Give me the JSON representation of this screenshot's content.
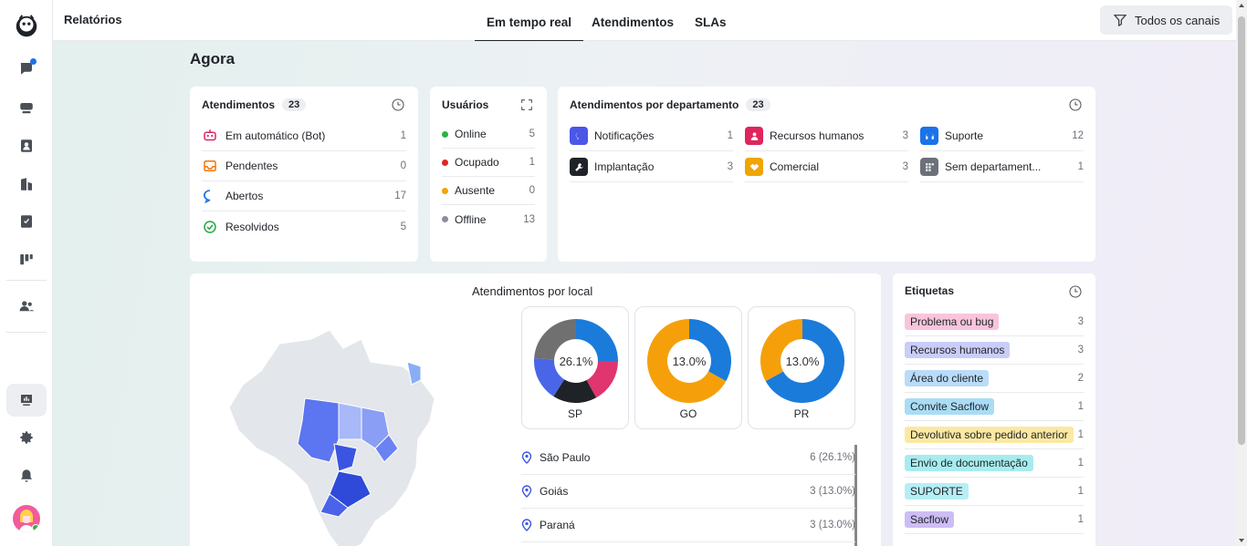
{
  "header": {
    "title": "Relatórios",
    "tabs": [
      "Em tempo real",
      "Atendimentos",
      "SLAs"
    ],
    "filter_label": "Todos os canais"
  },
  "section_title": "Agora",
  "atendimentos": {
    "title": "Atendimentos",
    "count": "23",
    "rows": [
      {
        "label": "Em automático (Bot)",
        "value": "1",
        "icon": "bot-icon",
        "color": "#e0245e"
      },
      {
        "label": "Pendentes",
        "value": "0",
        "icon": "inbox-icon",
        "color": "#f5740a"
      },
      {
        "label": "Abertos",
        "value": "17",
        "icon": "chat-bubble-icon",
        "color": "#1a73e8"
      },
      {
        "label": "Resolvidos",
        "value": "5",
        "icon": "check-circle-icon",
        "color": "#22a845"
      }
    ]
  },
  "usuarios": {
    "title": "Usuários",
    "rows": [
      {
        "label": "Online",
        "value": "5",
        "color": "#2bb34b"
      },
      {
        "label": "Ocupado",
        "value": "1",
        "color": "#e02424"
      },
      {
        "label": "Ausente",
        "value": "0",
        "color": "#f0a500"
      },
      {
        "label": "Offline",
        "value": "13",
        "color": "#8a8f98"
      }
    ]
  },
  "departamentos": {
    "title": "Atendimentos por departamento",
    "count": "23",
    "items": [
      {
        "label": "Notificações",
        "value": "1",
        "icon": "messenger-icon",
        "color": "#4a57e8"
      },
      {
        "label": "Recursos humanos",
        "value": "3",
        "icon": "person-icon",
        "color": "#e0245e"
      },
      {
        "label": "Suporte",
        "value": "12",
        "icon": "headset-icon",
        "color": "#1a73e8"
      },
      {
        "label": "Implantação",
        "value": "3",
        "icon": "wrench-icon",
        "color": "#1f2328"
      },
      {
        "label": "Comercial",
        "value": "3",
        "icon": "handshake-icon",
        "color": "#f0a500"
      },
      {
        "label": "Sem departament...",
        "value": "1",
        "icon": "grid-icon",
        "color": "#6b7079"
      }
    ]
  },
  "local": {
    "title": "Atendimentos por local",
    "donuts": [
      {
        "label": "SP",
        "center": "26.1%",
        "slices": [
          {
            "value": 0.25,
            "color": "#1a7bdb"
          },
          {
            "value": 0.17,
            "color": "#e0356e"
          },
          {
            "value": 0.17,
            "color": "#1f2328"
          },
          {
            "value": 0.17,
            "color": "#4a66e8"
          },
          {
            "value": 0.24,
            "color": "#707070"
          }
        ]
      },
      {
        "label": "GO",
        "center": "13.0%",
        "slices": [
          {
            "value": 0.33,
            "color": "#1a7bdb"
          },
          {
            "value": 0.67,
            "color": "#f5a00a"
          }
        ]
      },
      {
        "label": "PR",
        "center": "13.0%",
        "slices": [
          {
            "value": 0.67,
            "color": "#1a7bdb"
          },
          {
            "value": 0.33,
            "color": "#f5a00a"
          }
        ]
      }
    ],
    "list": [
      {
        "label": "São Paulo",
        "value": "6 (26.1%)"
      },
      {
        "label": "Goiás",
        "value": "3 (13.0%)"
      },
      {
        "label": "Paraná",
        "value": "3 (13.0%)"
      }
    ]
  },
  "etiquetas": {
    "title": "Etiquetas",
    "items": [
      {
        "label": "Problema ou bug",
        "value": "3",
        "color": "#f8c4dc"
      },
      {
        "label": "Recursos humanos",
        "value": "3",
        "color": "#c9cdf8"
      },
      {
        "label": "Área do cliente",
        "value": "2",
        "color": "#b9dcfa"
      },
      {
        "label": "Convite Sacflow",
        "value": "1",
        "color": "#a9dcf5"
      },
      {
        "label": "Devolutiva sobre pedido anterior",
        "value": "1",
        "color": "#fbe9a3"
      },
      {
        "label": "Envio de documentação",
        "value": "1",
        "color": "#a6ecef"
      },
      {
        "label": "SUPORTE",
        "value": "1",
        "color": "#b6eef5"
      },
      {
        "label": "Sacflow",
        "value": "1",
        "color": "#cdbdf5"
      }
    ]
  }
}
